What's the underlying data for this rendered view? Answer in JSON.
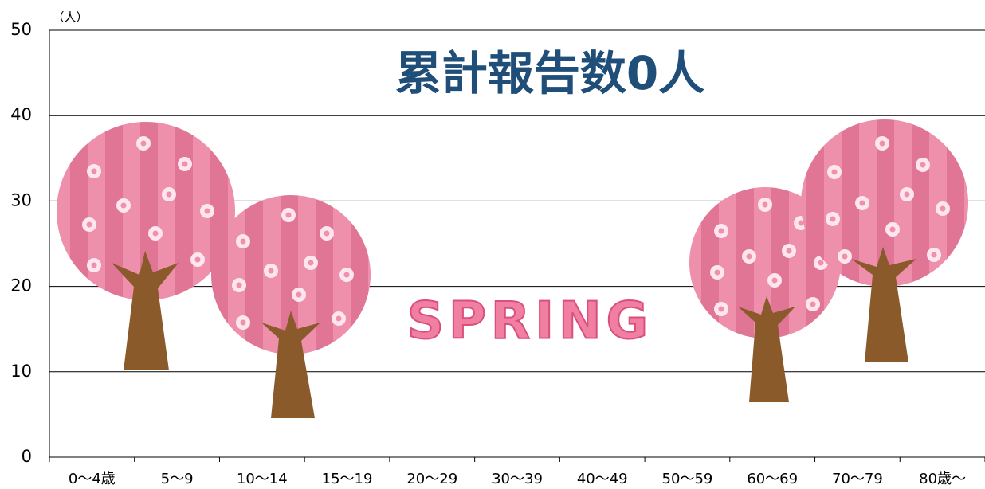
{
  "chart_data": {
    "type": "bar",
    "title": "累計報告数0人",
    "ylabel": "（人）",
    "annotation": "SPRING",
    "categories": [
      "0～4歳",
      "5～9",
      "10～14",
      "15～19",
      "20～29",
      "30～39",
      "40～49",
      "50～59",
      "60～69",
      "70～79",
      "80歳～"
    ],
    "values": [
      0,
      0,
      0,
      0,
      0,
      0,
      0,
      0,
      0,
      0,
      0
    ],
    "color": "#4472c4",
    "ylim": [
      0,
      50
    ],
    "yticks": [
      0,
      10,
      20,
      30,
      40,
      50
    ],
    "grid": true
  }
}
